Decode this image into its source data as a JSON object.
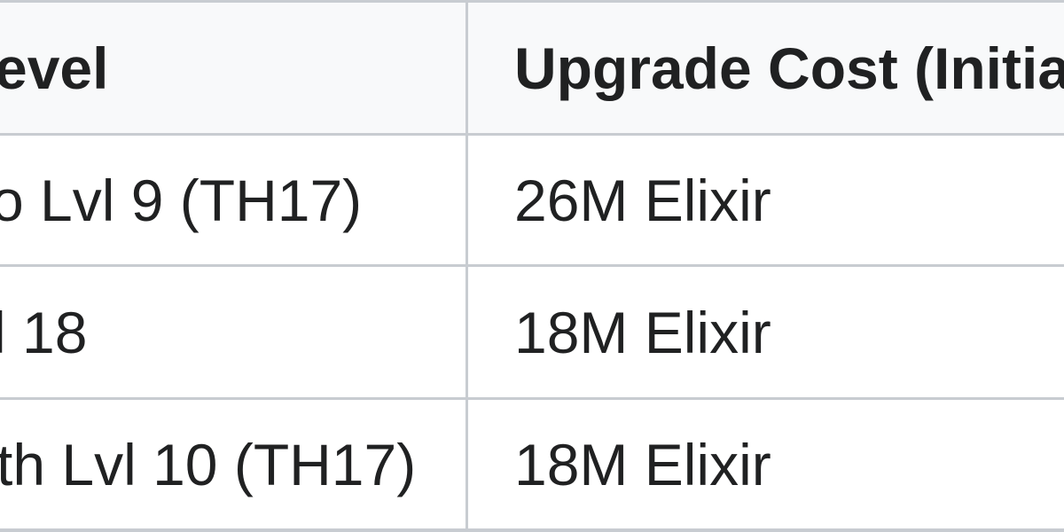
{
  "table": {
    "headers": [
      "evel",
      "Upgrade Cost (Initia"
    ],
    "rows": [
      [
        "o Lvl 9 (TH17)",
        "26M Elixir"
      ],
      [
        "l 18",
        "18M Elixir"
      ],
      [
        "th Lvl 10 (TH17)",
        "18M Elixir"
      ]
    ]
  }
}
